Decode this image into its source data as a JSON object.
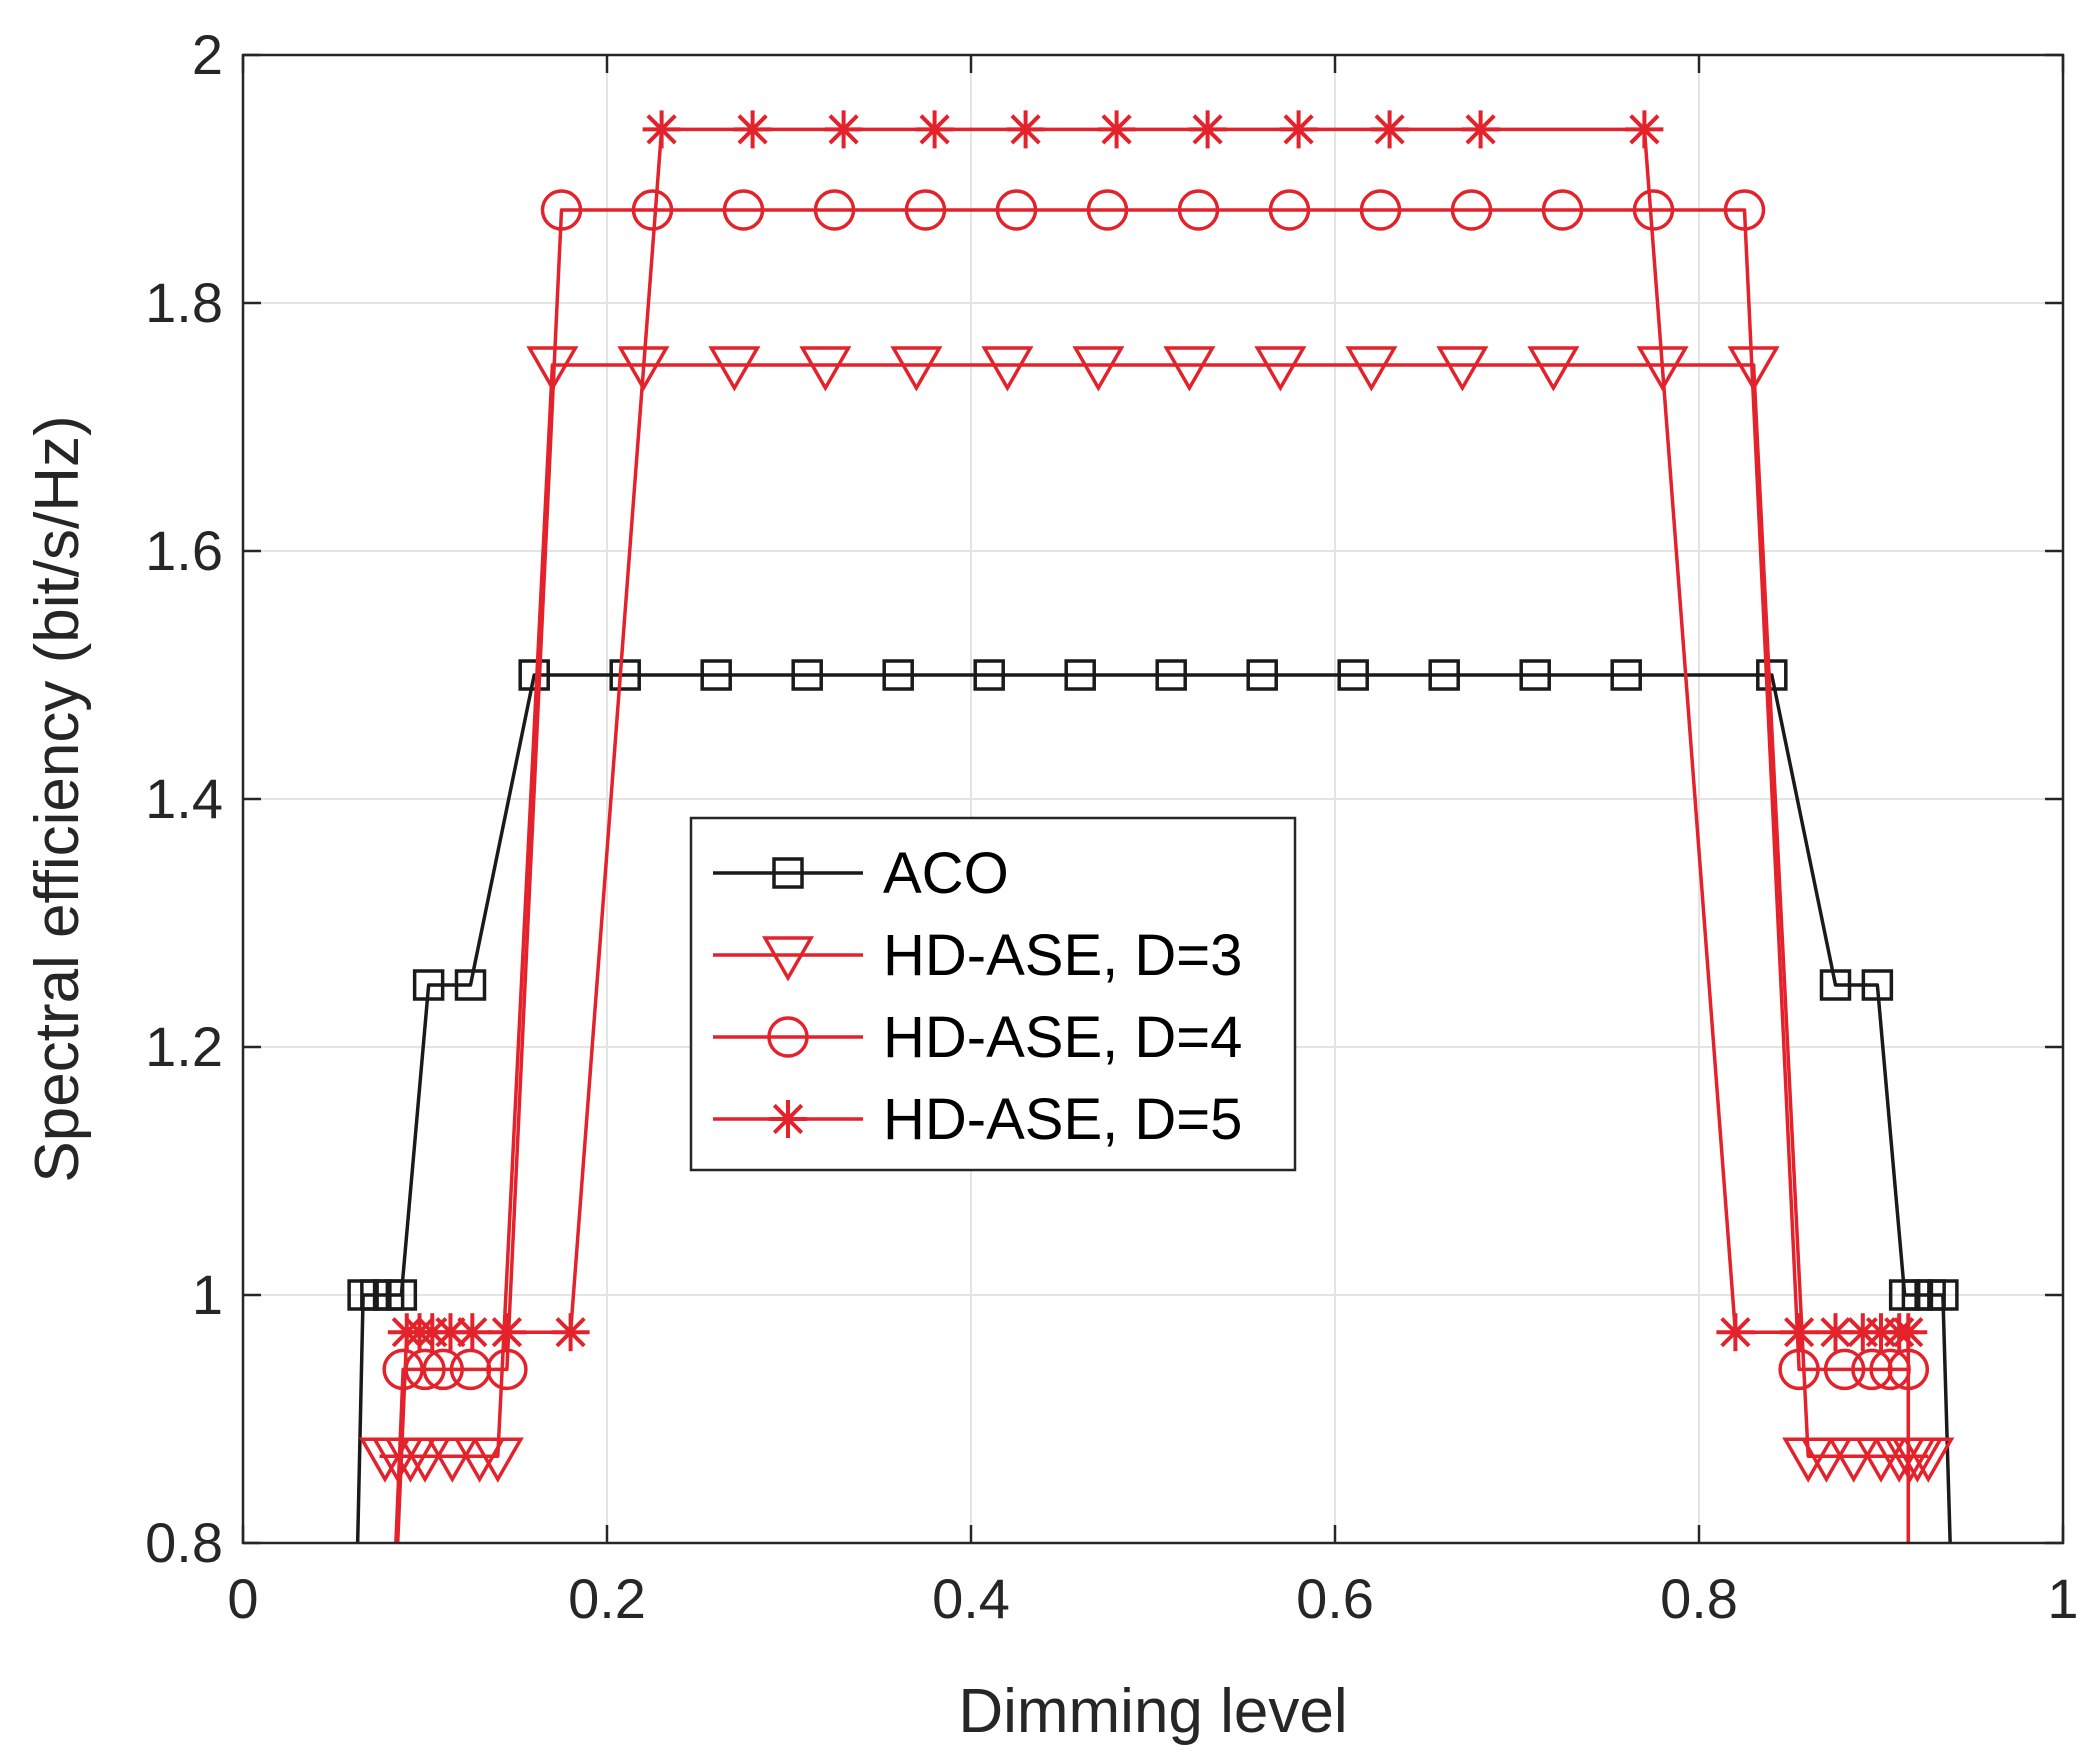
{
  "chart_data": {
    "type": "line",
    "title": "",
    "xlabel": "Dimming level",
    "ylabel": "Spectral efficiency (bit/s/Hz)",
    "xlim": [
      0,
      1
    ],
    "ylim": [
      0.8,
      2
    ],
    "xticks": [
      0,
      0.2,
      0.4,
      0.6,
      0.8,
      1
    ],
    "xtick_labels": [
      "0",
      "0.2",
      "0.4",
      "0.6",
      "0.8",
      "1"
    ],
    "yticks": [
      0.8,
      1,
      1.2,
      1.4,
      1.6,
      1.8,
      2
    ],
    "ytick_labels": [
      "0.8",
      "1",
      "1.2",
      "1.4",
      "1.6",
      "1.8",
      "2"
    ],
    "grid": true,
    "legend_position": "center-left",
    "series": [
      {
        "name": "ACO",
        "color": "#1a1a1a",
        "marker": "square",
        "line_x": [
          0.063,
          0.066,
          0.073,
          0.08,
          0.087,
          0.102,
          0.125,
          0.16,
          0.21,
          0.26,
          0.31,
          0.36,
          0.41,
          0.46,
          0.51,
          0.56,
          0.61,
          0.66,
          0.71,
          0.76,
          0.84,
          0.875,
          0.898,
          0.913,
          0.92,
          0.927,
          0.934,
          0.938
        ],
        "line_y": [
          0.8,
          1.0,
          1.0,
          1.0,
          1.0,
          1.25,
          1.25,
          1.5,
          1.5,
          1.5,
          1.5,
          1.5,
          1.5,
          1.5,
          1.5,
          1.5,
          1.5,
          1.5,
          1.5,
          1.5,
          1.5,
          1.25,
          1.25,
          1.0,
          1.0,
          1.0,
          1.0,
          0.8
        ],
        "marker_x": [
          0.066,
          0.073,
          0.08,
          0.087,
          0.102,
          0.125,
          0.16,
          0.21,
          0.26,
          0.31,
          0.36,
          0.41,
          0.46,
          0.51,
          0.56,
          0.61,
          0.66,
          0.71,
          0.76,
          0.84,
          0.875,
          0.898,
          0.913,
          0.92,
          0.927,
          0.934
        ],
        "marker_y": [
          1.0,
          1.0,
          1.0,
          1.0,
          1.25,
          1.25,
          1.5,
          1.5,
          1.5,
          1.5,
          1.5,
          1.5,
          1.5,
          1.5,
          1.5,
          1.5,
          1.5,
          1.5,
          1.5,
          1.5,
          1.25,
          1.25,
          1.0,
          1.0,
          1.0,
          1.0
        ]
      },
      {
        "name": "HD-ASE, D=3",
        "color": "#e3222b",
        "marker": "triangle-down",
        "line_x": [
          0.075,
          0.078,
          0.085,
          0.092,
          0.1,
          0.115,
          0.13,
          0.14,
          0.17,
          0.22,
          0.27,
          0.32,
          0.37,
          0.42,
          0.47,
          0.52,
          0.57,
          0.62,
          0.67,
          0.72,
          0.78,
          0.83,
          0.86,
          0.87,
          0.885,
          0.9,
          0.91,
          0.916,
          0.92,
          0.926
        ],
        "line_y": [
          0.87,
          0.87,
          0.87,
          0.87,
          0.87,
          0.87,
          0.87,
          0.87,
          1.75,
          1.75,
          1.75,
          1.75,
          1.75,
          1.75,
          1.75,
          1.75,
          1.75,
          1.75,
          1.75,
          1.75,
          1.75,
          1.75,
          0.87,
          0.87,
          0.87,
          0.87,
          0.87,
          0.87,
          0.87,
          0.87
        ],
        "marker_x": [
          0.078,
          0.085,
          0.092,
          0.1,
          0.115,
          0.13,
          0.14,
          0.17,
          0.22,
          0.27,
          0.32,
          0.37,
          0.42,
          0.47,
          0.52,
          0.57,
          0.62,
          0.67,
          0.72,
          0.78,
          0.83,
          0.86,
          0.87,
          0.885,
          0.9,
          0.91,
          0.916,
          0.92,
          0.926
        ],
        "marker_y": [
          0.87,
          0.87,
          0.87,
          0.87,
          0.87,
          0.87,
          0.87,
          1.75,
          1.75,
          1.75,
          1.75,
          1.75,
          1.75,
          1.75,
          1.75,
          1.75,
          1.75,
          1.75,
          1.75,
          1.75,
          1.75,
          0.87,
          0.87,
          0.87,
          0.87,
          0.87,
          0.87,
          0.87,
          0.87
        ]
      },
      {
        "name": "HD-ASE, D=4",
        "color": "#e3222b",
        "marker": "circle",
        "line_x": [
          0.084,
          0.088,
          0.1,
          0.11,
          0.125,
          0.145,
          0.175,
          0.225,
          0.275,
          0.325,
          0.375,
          0.425,
          0.475,
          0.525,
          0.575,
          0.625,
          0.675,
          0.725,
          0.775,
          0.825,
          0.855,
          0.88,
          0.895,
          0.905,
          0.915,
          0.915
        ],
        "line_y": [
          0.8,
          0.94,
          0.94,
          0.94,
          0.94,
          0.94,
          1.875,
          1.875,
          1.875,
          1.875,
          1.875,
          1.875,
          1.875,
          1.875,
          1.875,
          1.875,
          1.875,
          1.875,
          1.875,
          1.875,
          0.94,
          0.94,
          0.94,
          0.94,
          0.94,
          0.8
        ],
        "marker_x": [
          0.088,
          0.1,
          0.11,
          0.125,
          0.145,
          0.175,
          0.225,
          0.275,
          0.325,
          0.375,
          0.425,
          0.475,
          0.525,
          0.575,
          0.625,
          0.675,
          0.725,
          0.775,
          0.825,
          0.855,
          0.88,
          0.895,
          0.905,
          0.915
        ],
        "marker_y": [
          0.94,
          0.94,
          0.94,
          0.94,
          0.94,
          1.875,
          1.875,
          1.875,
          1.875,
          1.875,
          1.875,
          1.875,
          1.875,
          1.875,
          1.875,
          1.875,
          1.875,
          1.875,
          1.875,
          0.94,
          0.94,
          0.94,
          0.94,
          0.94
        ],
        "tail_markers": [
          0.918
        ]
      },
      {
        "name": "HD-ASE, D=5",
        "color": "#e3222b",
        "marker": "asterisk",
        "line_x": [
          0.085,
          0.09,
          0.097,
          0.104,
          0.114,
          0.126,
          0.145,
          0.18,
          0.23,
          0.28,
          0.33,
          0.38,
          0.43,
          0.48,
          0.53,
          0.58,
          0.63,
          0.68,
          0.77,
          0.82,
          0.855,
          0.875,
          0.89,
          0.9,
          0.91,
          0.915,
          0.915
        ],
        "line_y": [
          0.8,
          0.97,
          0.97,
          0.97,
          0.97,
          0.97,
          0.97,
          0.97,
          1.94,
          1.94,
          1.94,
          1.94,
          1.94,
          1.94,
          1.94,
          1.94,
          1.94,
          1.94,
          1.94,
          0.97,
          0.97,
          0.97,
          0.97,
          0.97,
          0.97,
          0.97,
          0.8
        ],
        "marker_x": [
          0.09,
          0.097,
          0.104,
          0.114,
          0.126,
          0.145,
          0.18,
          0.23,
          0.28,
          0.33,
          0.38,
          0.43,
          0.48,
          0.53,
          0.58,
          0.63,
          0.68,
          0.77,
          0.82,
          0.855,
          0.875,
          0.89,
          0.9,
          0.91,
          0.915
        ],
        "marker_y": [
          0.97,
          0.97,
          0.97,
          0.97,
          0.97,
          0.97,
          0.97,
          1.94,
          1.94,
          1.94,
          1.94,
          1.94,
          1.94,
          1.94,
          1.94,
          1.94,
          1.94,
          1.94,
          0.97,
          0.97,
          0.97,
          0.97,
          0.97,
          0.97,
          0.97
        ]
      }
    ]
  }
}
